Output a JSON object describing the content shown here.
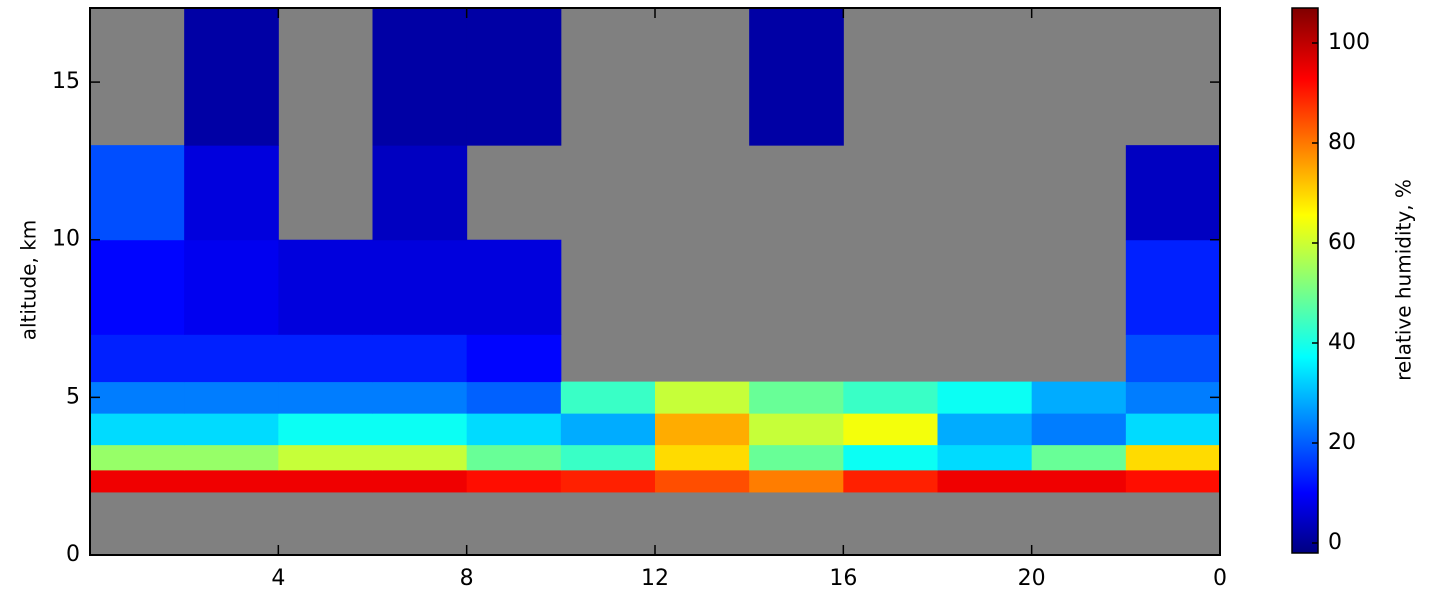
{
  "chart_data": {
    "type": "heatmap",
    "y_label": "altitude, km",
    "colorbar_label": "relative humidity, %",
    "x_edges": [
      0,
      2,
      4,
      6,
      8,
      10,
      12,
      14,
      16,
      18,
      20,
      22,
      24
    ],
    "y_edges": [
      0,
      2,
      2.7,
      3.5,
      4.5,
      5.5,
      7,
      10,
      13,
      17.35
    ],
    "z": [
      [
        null,
        null,
        null,
        null,
        null,
        null,
        null,
        null,
        null,
        null,
        null,
        null
      ],
      [
        95,
        95,
        95,
        95,
        92,
        90,
        85,
        80,
        90,
        95,
        95,
        92
      ],
      [
        55,
        55,
        60,
        60,
        50,
        45,
        70,
        50,
        40,
        35,
        50,
        70
      ],
      [
        35,
        35,
        40,
        40,
        35,
        30,
        75,
        60,
        65,
        30,
        25,
        35
      ],
      [
        25,
        25,
        25,
        25,
        22,
        45,
        60,
        50,
        45,
        40,
        30,
        25
      ],
      [
        15,
        15,
        15,
        15,
        12,
        null,
        null,
        null,
        null,
        null,
        null,
        20
      ],
      [
        12,
        10,
        8,
        8,
        8,
        null,
        null,
        null,
        null,
        null,
        null,
        15
      ],
      [
        20,
        8,
        null,
        5,
        null,
        null,
        null,
        null,
        null,
        null,
        null,
        5
      ],
      [
        null,
        2,
        null,
        2,
        2,
        null,
        null,
        2,
        null,
        null,
        null,
        null
      ]
    ],
    "missing_color": "#808080",
    "xlim": [
      0,
      24
    ],
    "xticks": [
      4,
      8,
      12,
      16,
      20,
      {
        "value": 24,
        "label": "0"
      }
    ],
    "ylim": [
      0,
      17.35
    ],
    "yticks": [
      0,
      5,
      10,
      15
    ],
    "clim": [
      -2,
      107
    ],
    "colorbar_ticks": [
      0,
      20,
      40,
      60,
      80,
      100
    ],
    "colormap": "jet"
  }
}
